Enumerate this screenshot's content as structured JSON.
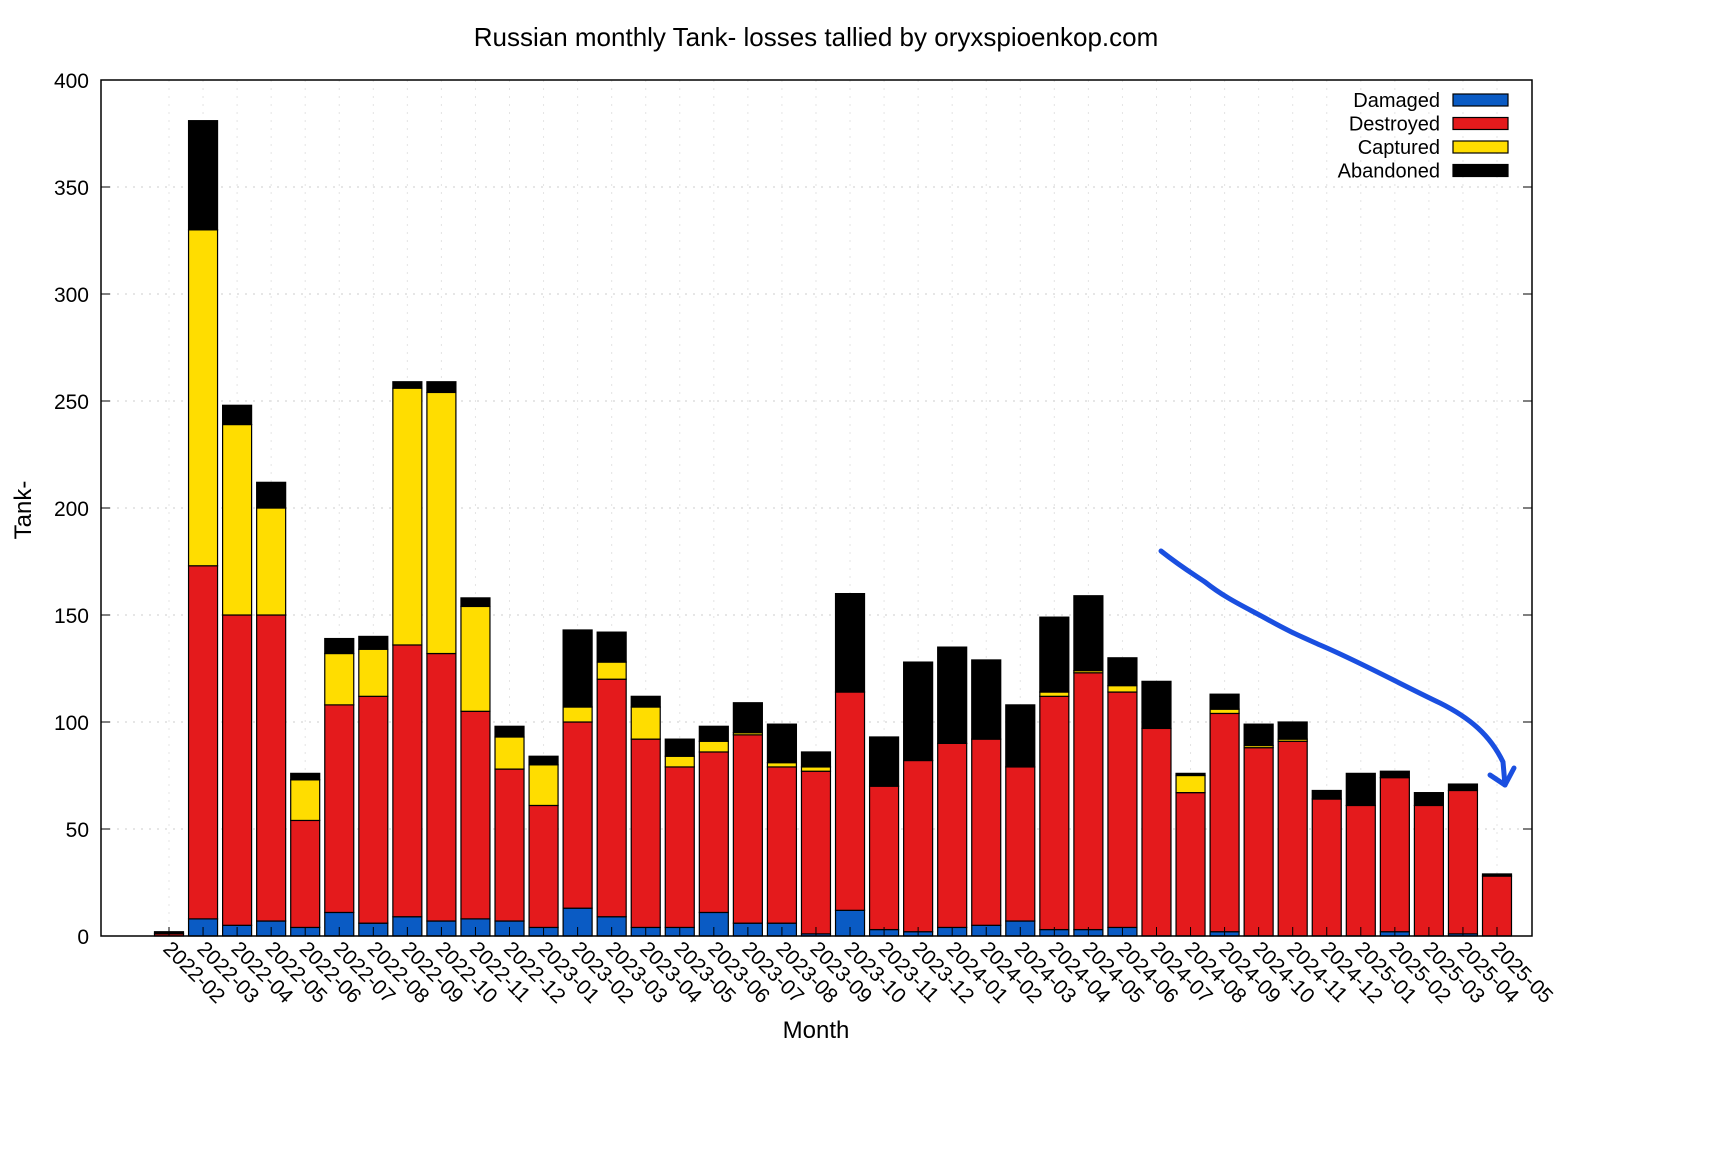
{
  "chart_data": {
    "type": "bar",
    "stacked": true,
    "title": "Russian monthly Tank- losses tallied by oryxspioenkop.com",
    "xlabel": "Month",
    "ylabel": "Tank-",
    "ylim": [
      0,
      400
    ],
    "yticks": [
      0,
      50,
      100,
      150,
      200,
      250,
      300,
      350,
      400
    ],
    "grid": true,
    "legend_position": "top-right",
    "categories": [
      "2022-02",
      "2022-03",
      "2022-04",
      "2022-05",
      "2022-06",
      "2022-07",
      "2022-08",
      "2022-09",
      "2022-10",
      "2022-11",
      "2022-12",
      "2023-01",
      "2023-02",
      "2023-03",
      "2023-04",
      "2023-05",
      "2023-06",
      "2023-07",
      "2023-08",
      "2023-09",
      "2023-10",
      "2023-11",
      "2023-12",
      "2024-01",
      "2024-02",
      "2024-03",
      "2024-04",
      "2024-05",
      "2024-06",
      "2024-07",
      "2024-08",
      "2024-09",
      "2024-10",
      "2024-11",
      "2024-12",
      "2025-01",
      "2025-02",
      "2025-03",
      "2025-04",
      "2025-05"
    ],
    "series": [
      {
        "name": "Damaged",
        "color": "#0a5bc4",
        "values": [
          0,
          8,
          5,
          7,
          4,
          11,
          6,
          9,
          7,
          8,
          7,
          4,
          13,
          9,
          4,
          4,
          11,
          6,
          6,
          1,
          12,
          3,
          2,
          4,
          5,
          7,
          3,
          3,
          4,
          0,
          0,
          2,
          0,
          0,
          0,
          0,
          2,
          0,
          1,
          0
        ]
      },
      {
        "name": "Destroyed",
        "color": "#e41a1c",
        "values": [
          1,
          165,
          145,
          143,
          50,
          97,
          106,
          127,
          125,
          97,
          71,
          57,
          87,
          111,
          88,
          75,
          75,
          88,
          73,
          76,
          102,
          67,
          80,
          86,
          87,
          72,
          109,
          120,
          110,
          97,
          67,
          102,
          88,
          91,
          64,
          61,
          72,
          61,
          67,
          28
        ]
      },
      {
        "name": "Captured",
        "color": "#ffdd00",
        "values": [
          0,
          157,
          89,
          50,
          19,
          24,
          22,
          120,
          122,
          49,
          15,
          19,
          7,
          8,
          15,
          5,
          5,
          1,
          2,
          2,
          0,
          0,
          0,
          0,
          0,
          0,
          2,
          1,
          3,
          0,
          8,
          2,
          1,
          1,
          0,
          0,
          0,
          0,
          0,
          0
        ]
      },
      {
        "name": "Abandoned",
        "color": "#000000",
        "values": [
          1,
          51,
          9,
          12,
          3,
          7,
          6,
          3,
          5,
          4,
          5,
          4,
          36,
          14,
          5,
          8,
          7,
          14,
          18,
          7,
          46,
          23,
          46,
          45,
          37,
          29,
          35,
          35,
          13,
          22,
          1,
          7,
          10,
          8,
          4,
          15,
          3,
          6,
          3,
          1
        ]
      }
    ],
    "annotation_color": "#1a4fe0"
  }
}
